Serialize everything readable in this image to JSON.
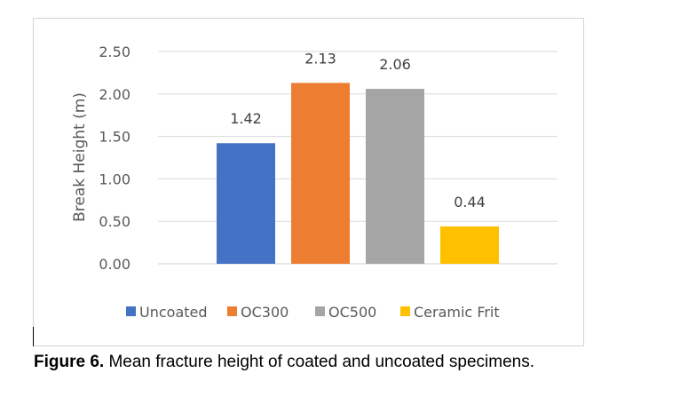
{
  "caption": {
    "label": "Figure 6.",
    "text": " Mean fracture height of coated and uncoated specimens."
  },
  "chart_data": {
    "type": "bar",
    "title": "",
    "xlabel": "",
    "ylabel": "Break Height (m)",
    "ylim": [
      0,
      2.5
    ],
    "yticks": [
      0,
      0.5,
      1.0,
      1.5,
      2.0,
      2.5
    ],
    "ytick_labels": [
      "0.00",
      "0.50",
      "1.00",
      "1.50",
      "2.00",
      "2.50"
    ],
    "grid": true,
    "legend_position": "bottom",
    "series": [
      {
        "name": "Uncoated",
        "values": [
          1.42
        ],
        "color": "#4472c4"
      },
      {
        "name": "OC300",
        "values": [
          2.13
        ],
        "color": "#ed7d31"
      },
      {
        "name": "OC500",
        "values": [
          2.06
        ],
        "color": "#a5a5a5"
      },
      {
        "name": "Ceramic Frit",
        "values": [
          0.44
        ],
        "color": "#ffc000"
      }
    ],
    "data_labels": [
      "1.42",
      "2.13",
      "2.06",
      "0.44"
    ]
  }
}
